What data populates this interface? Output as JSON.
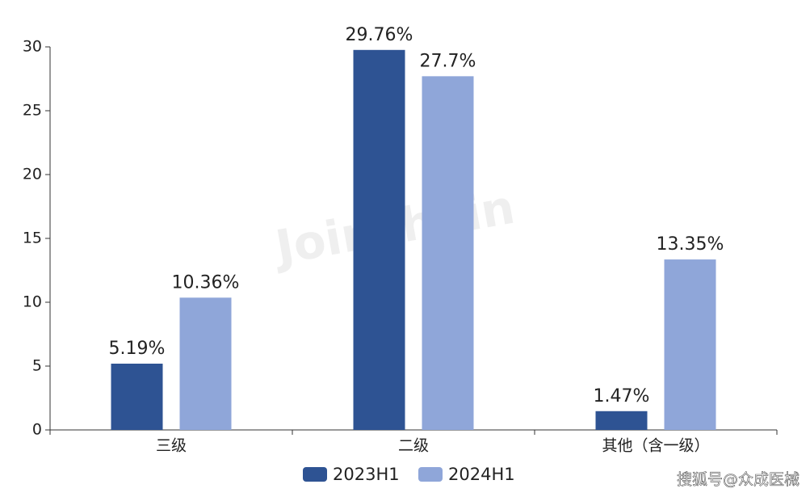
{
  "chart_data": {
    "type": "bar",
    "categories": [
      "三级",
      "二级",
      "其他（含一级）"
    ],
    "series": [
      {
        "name": "2023H1",
        "color": "#2e5393",
        "values": [
          5.19,
          29.76,
          1.47
        ],
        "value_labels": [
          "5.19%",
          "29.76%",
          "1.47%"
        ]
      },
      {
        "name": "2024H1",
        "color": "#8fa6d9",
        "values": [
          10.36,
          27.7,
          13.35
        ],
        "value_labels": [
          "10.36%",
          "27.7%",
          "13.35%"
        ]
      }
    ],
    "ylim": [
      0,
      30
    ],
    "yticks": [
      0,
      5,
      10,
      15,
      20,
      25,
      30
    ],
    "grid": false,
    "legend": "bottom",
    "watermark": "Joinchain",
    "source": "搜狐号@众成医械"
  }
}
